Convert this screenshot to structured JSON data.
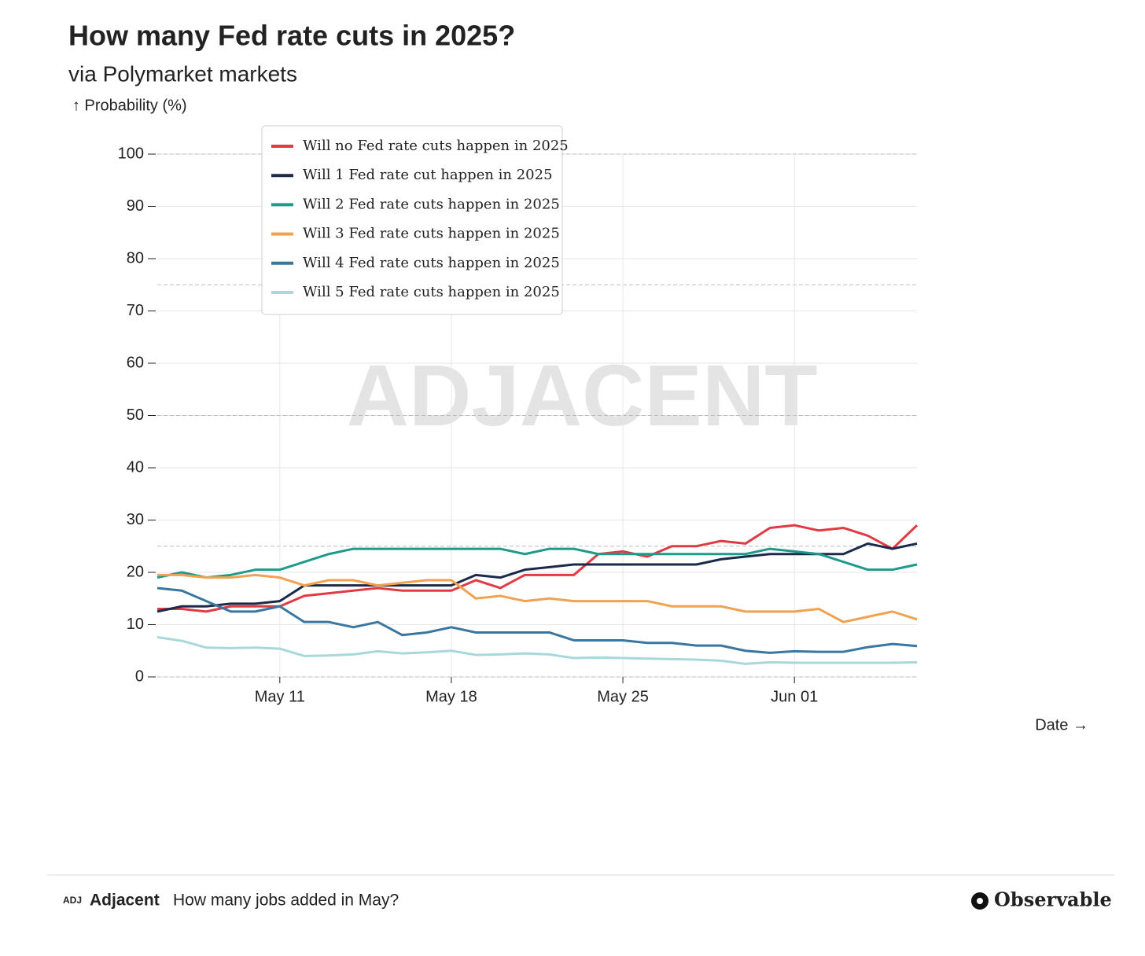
{
  "chart_data": {
    "type": "line",
    "title": "How many Fed rate cuts in 2025?",
    "subtitle": "via Polymarket markets",
    "y_label": "↑ Probability (%)",
    "x_label": "Date →",
    "watermark": "ADJACENT",
    "x": [
      "May 06",
      "May 07",
      "May 08",
      "May 09",
      "May 10",
      "May 11",
      "May 12",
      "May 13",
      "May 14",
      "May 15",
      "May 16",
      "May 17",
      "May 18",
      "May 19",
      "May 20",
      "May 21",
      "May 22",
      "May 23",
      "May 24",
      "May 25",
      "May 26",
      "May 27",
      "May 28",
      "May 29",
      "May 30",
      "May 31",
      "Jun 01",
      "Jun 02",
      "Jun 03",
      "Jun 04",
      "Jun 05",
      "Jun 06"
    ],
    "xticks": [
      "May 11",
      "May 18",
      "May 25",
      "Jun 01"
    ],
    "ylim": [
      0,
      100
    ],
    "yticks": [
      0,
      10,
      20,
      30,
      40,
      50,
      60,
      70,
      80,
      90,
      100
    ],
    "reference_lines": [
      0,
      25,
      50,
      75,
      100
    ],
    "grid": true,
    "series": [
      {
        "name": "Will no Fed rate cuts happen in 2025",
        "color": "#e03a45",
        "values": [
          13,
          13,
          12.5,
          13.5,
          13.5,
          13.5,
          15.5,
          16,
          16.5,
          17,
          16.5,
          16.5,
          16.5,
          18.5,
          17,
          19.5,
          19.5,
          19.5,
          23.5,
          24,
          23,
          25,
          25,
          26,
          25.5,
          28.5,
          29,
          28,
          28.5,
          27,
          24.5,
          29
        ]
      },
      {
        "name": "Will 1 Fed rate cut happen in 2025",
        "color": "#1b2a4a",
        "values": [
          12.5,
          13.5,
          13.5,
          14,
          14,
          14.5,
          17.5,
          17.5,
          17.5,
          17.5,
          17.5,
          17.5,
          17.5,
          19.5,
          19,
          20.5,
          21,
          21.5,
          21.5,
          21.5,
          21.5,
          21.5,
          21.5,
          22.5,
          23,
          23.5,
          23.5,
          23.5,
          23.5,
          25.5,
          24.5,
          25.5
        ]
      },
      {
        "name": "Will 2 Fed rate cuts happen in 2025",
        "color": "#1f9a8a",
        "values": [
          19,
          20,
          19,
          19.5,
          20.5,
          20.5,
          22,
          23.5,
          24.5,
          24.5,
          24.5,
          24.5,
          24.5,
          24.5,
          24.5,
          23.5,
          24.5,
          24.5,
          23.5,
          23.5,
          23.5,
          23.5,
          23.5,
          23.5,
          23.5,
          24.5,
          24,
          23.5,
          22,
          20.5,
          20.5,
          21.5
        ]
      },
      {
        "name": "Will 3 Fed rate cuts happen in 2025",
        "color": "#f0a252",
        "values": [
          19.5,
          19.5,
          19,
          19,
          19.5,
          19,
          17.5,
          18.5,
          18.5,
          17.5,
          18,
          18.5,
          18.5,
          15,
          15.5,
          14.5,
          15,
          14.5,
          14.5,
          14.5,
          14.5,
          13.5,
          13.5,
          13.5,
          12.5,
          12.5,
          12.5,
          13,
          10.5,
          11.5,
          12.5,
          11
        ]
      },
      {
        "name": "Will 4 Fed rate cuts happen in 2025",
        "color": "#3a77a0",
        "values": [
          17,
          16.5,
          14.5,
          12.5,
          12.5,
          13.5,
          10.5,
          10.5,
          9.5,
          10.5,
          8,
          8.5,
          9.5,
          8.5,
          8.5,
          8.5,
          8.5,
          7,
          7,
          7,
          6.5,
          6.5,
          6,
          6,
          5,
          4.6,
          4.9,
          4.8,
          4.8,
          5.7,
          6.3,
          5.9
        ]
      },
      {
        "name": "Will 5 Fed rate cuts happen in 2025",
        "color": "#a8d8dc",
        "values": [
          7.6,
          6.9,
          5.6,
          5.5,
          5.6,
          5.4,
          4,
          4.1,
          4.3,
          4.9,
          4.5,
          4.7,
          5,
          4.2,
          4.3,
          4.5,
          4.3,
          3.6,
          3.7,
          3.6,
          3.5,
          3.4,
          3.3,
          3.1,
          2.5,
          2.8,
          2.7,
          2.7,
          2.7,
          2.7,
          2.7,
          2.8
        ]
      }
    ]
  },
  "footer": {
    "logo": "ADJ",
    "brand": "Adjacent",
    "link": "How many jobs added in May?",
    "platform": "Observable"
  }
}
